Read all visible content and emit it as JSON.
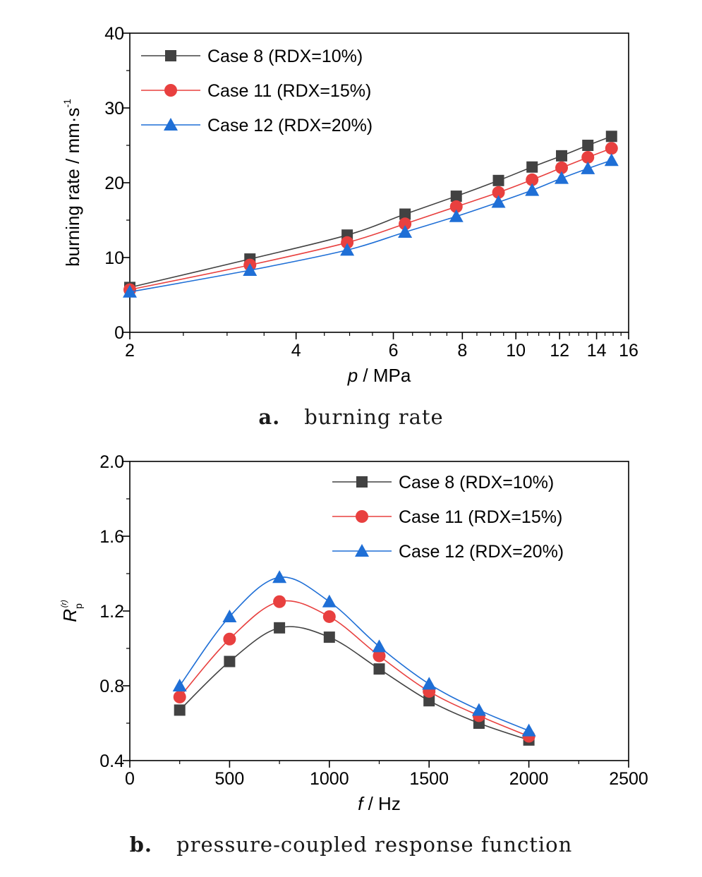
{
  "chart_data": [
    {
      "type": "line",
      "caption_letter": "a.",
      "caption_text": "burning rate",
      "xlabel_italic": "p",
      "xlabel_rest": " / MPa",
      "ylabel": "burning rate / mm·s",
      "ylabel_sup": "-1",
      "x_scale": "log",
      "xlim": [
        2,
        16
      ],
      "ylim": [
        0,
        40
      ],
      "xticks": [
        2,
        4,
        6,
        8,
        10,
        12,
        14,
        16
      ],
      "yticks": [
        0,
        10,
        20,
        30,
        40
      ],
      "legend_position": "top-left",
      "series": [
        {
          "name": "Case 8 (RDX=10%)",
          "marker": "square",
          "color": "#424242",
          "x": [
            2,
            3.3,
            4.95,
            6.3,
            7.8,
            9.3,
            10.7,
            12.1,
            13.5,
            14.9
          ],
          "y": [
            6.0,
            9.8,
            13.0,
            15.8,
            18.2,
            20.3,
            22.1,
            23.6,
            25.0,
            26.2
          ]
        },
        {
          "name": "Case 11 (RDX=15%)",
          "marker": "circle",
          "color": "#e8403f",
          "x": [
            2,
            3.3,
            4.95,
            6.3,
            7.8,
            9.3,
            10.7,
            12.1,
            13.5,
            14.9
          ],
          "y": [
            5.7,
            9.0,
            12.0,
            14.5,
            16.8,
            18.7,
            20.4,
            22.0,
            23.4,
            24.6
          ]
        },
        {
          "name": "Case 12 (RDX=20%)",
          "marker": "triangle",
          "color": "#1f6fd6",
          "x": [
            2,
            3.3,
            4.95,
            6.3,
            7.8,
            9.3,
            10.7,
            12.1,
            13.5,
            14.9
          ],
          "y": [
            5.4,
            8.3,
            11.0,
            13.4,
            15.5,
            17.4,
            19.0,
            20.6,
            21.9,
            23.0
          ]
        }
      ]
    },
    {
      "type": "line",
      "caption_letter": "b.",
      "caption_text": "pressure-coupled response function",
      "xlabel_italic": "f",
      "xlabel_rest": " / Hz",
      "ylabel": "R",
      "ylabel_sub": "p",
      "ylabel_sup": "(r)",
      "xlim": [
        0,
        2500
      ],
      "ylim": [
        0.4,
        2.0
      ],
      "xticks": [
        0,
        500,
        1000,
        1500,
        2000,
        2500
      ],
      "yticks": [
        "0.4",
        "0.8",
        "1.2",
        "1.6",
        "2.0"
      ],
      "legend_position": "top-right",
      "series": [
        {
          "name": "Case 8 (RDX=10%)",
          "marker": "square",
          "color": "#424242",
          "x": [
            250,
            500,
            750,
            1000,
            1250,
            1500,
            1750,
            2000
          ],
          "y": [
            0.67,
            0.93,
            1.11,
            1.06,
            0.89,
            0.72,
            0.6,
            0.51
          ]
        },
        {
          "name": "Case 11 (RDX=15%)",
          "marker": "circle",
          "color": "#e8403f",
          "x": [
            250,
            500,
            750,
            1000,
            1250,
            1500,
            1750,
            2000
          ],
          "y": [
            0.74,
            1.05,
            1.25,
            1.17,
            0.96,
            0.77,
            0.64,
            0.53
          ]
        },
        {
          "name": "Case 12 (RDX=20%)",
          "marker": "triangle",
          "color": "#1f6fd6",
          "x": [
            250,
            500,
            750,
            1000,
            1250,
            1500,
            1750,
            2000
          ],
          "y": [
            0.8,
            1.17,
            1.38,
            1.25,
            1.01,
            0.81,
            0.67,
            0.56
          ]
        }
      ]
    }
  ]
}
